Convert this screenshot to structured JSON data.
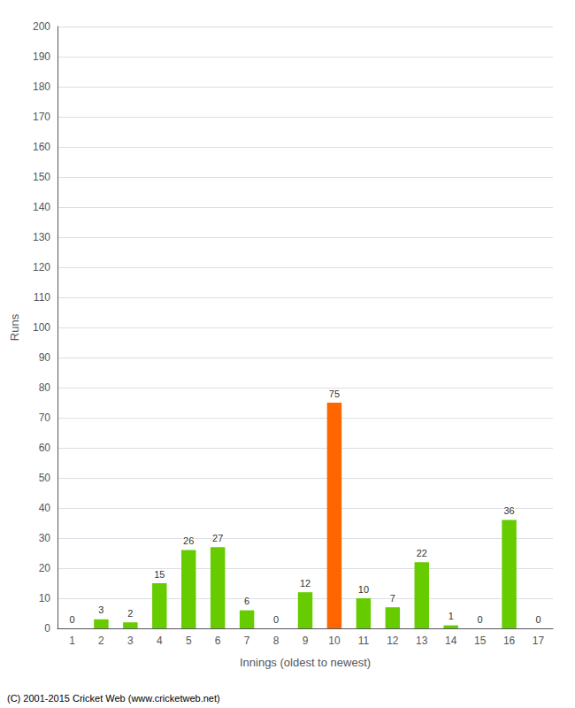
{
  "chart_data": {
    "type": "bar",
    "xlabel": "Innings (oldest to newest)",
    "ylabel": "Runs",
    "categories": [
      1,
      2,
      3,
      4,
      5,
      6,
      7,
      8,
      9,
      10,
      11,
      12,
      13,
      14,
      15,
      16,
      17
    ],
    "values": [
      0,
      3,
      2,
      15,
      26,
      27,
      6,
      0,
      12,
      75,
      10,
      7,
      22,
      1,
      0,
      36,
      0
    ],
    "colors": [
      "#66cc00",
      "#66cc00",
      "#66cc00",
      "#66cc00",
      "#66cc00",
      "#66cc00",
      "#66cc00",
      "#66cc00",
      "#66cc00",
      "#ff6600",
      "#66cc00",
      "#66cc00",
      "#66cc00",
      "#66cc00",
      "#66cc00",
      "#66cc00",
      "#66cc00"
    ],
    "ylim": [
      0,
      200
    ],
    "yticks": [
      0,
      10,
      20,
      30,
      40,
      50,
      60,
      70,
      80,
      90,
      100,
      110,
      120,
      130,
      140,
      150,
      160,
      170,
      180,
      190,
      200
    ],
    "grid": true,
    "data_labels": true,
    "annotations": [
      "(C) 2001-2015 Cricket Web (www.cricketweb.net)"
    ]
  }
}
